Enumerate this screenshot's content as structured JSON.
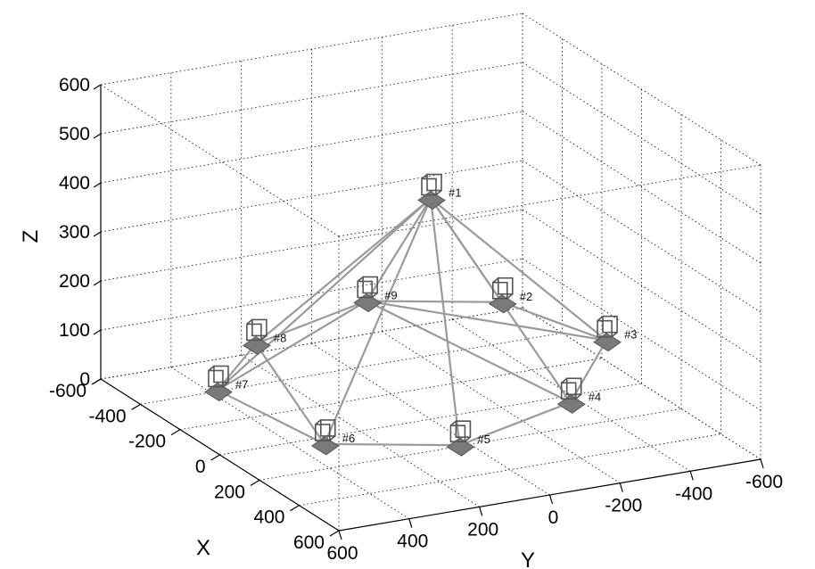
{
  "chart_data": {
    "type": "3d-scatter",
    "title": "",
    "xlabel": "X",
    "ylabel": "Y",
    "zlabel": "Z",
    "x_ticks": [
      "-600",
      "-400",
      "-200",
      "0",
      "200",
      "400",
      "600"
    ],
    "y_ticks": [
      "600",
      "400",
      "200",
      "0",
      "-200",
      "-400",
      "-600"
    ],
    "z_ticks": [
      "0",
      "100",
      "200",
      "300",
      "400",
      "500",
      "600"
    ],
    "xlim": [
      -600,
      600
    ],
    "ylim": [
      -600,
      600
    ],
    "zlim": [
      0,
      600
    ],
    "grid": true,
    "nodes": [
      {
        "label": "#1",
        "x": 0,
        "y": 0,
        "z": 450
      },
      {
        "label": "#2",
        "x": -350,
        "y": -400,
        "z": 100
      },
      {
        "label": "#3",
        "x": 0,
        "y": -500,
        "z": 100
      },
      {
        "label": "#4",
        "x": 350,
        "y": -200,
        "z": 100
      },
      {
        "label": "#5",
        "x": 500,
        "y": 200,
        "z": 100
      },
      {
        "label": "#6",
        "x": 350,
        "y": 500,
        "z": 100
      },
      {
        "label": "#7",
        "x": -100,
        "y": 550,
        "z": 100
      },
      {
        "label": "#8",
        "x": -350,
        "y": 300,
        "z": 100
      },
      {
        "label": "#9",
        "x": -500,
        "y": -100,
        "z": 100
      }
    ],
    "links": [
      [
        "#1",
        "#2"
      ],
      [
        "#1",
        "#3"
      ],
      [
        "#1",
        "#4"
      ],
      [
        "#1",
        "#5"
      ],
      [
        "#1",
        "#6"
      ],
      [
        "#1",
        "#7"
      ],
      [
        "#1",
        "#8"
      ],
      [
        "#1",
        "#9"
      ],
      [
        "#2",
        "#3"
      ],
      [
        "#3",
        "#4"
      ],
      [
        "#4",
        "#5"
      ],
      [
        "#5",
        "#6"
      ],
      [
        "#6",
        "#7"
      ],
      [
        "#7",
        "#8"
      ],
      [
        "#8",
        "#9"
      ],
      [
        "#9",
        "#2"
      ],
      [
        "#6",
        "#8"
      ],
      [
        "#7",
        "#9"
      ],
      [
        "#4",
        "#9"
      ],
      [
        "#9",
        "#3"
      ]
    ],
    "colors": {
      "link": "#9a9a9a",
      "node": "#555555"
    }
  }
}
